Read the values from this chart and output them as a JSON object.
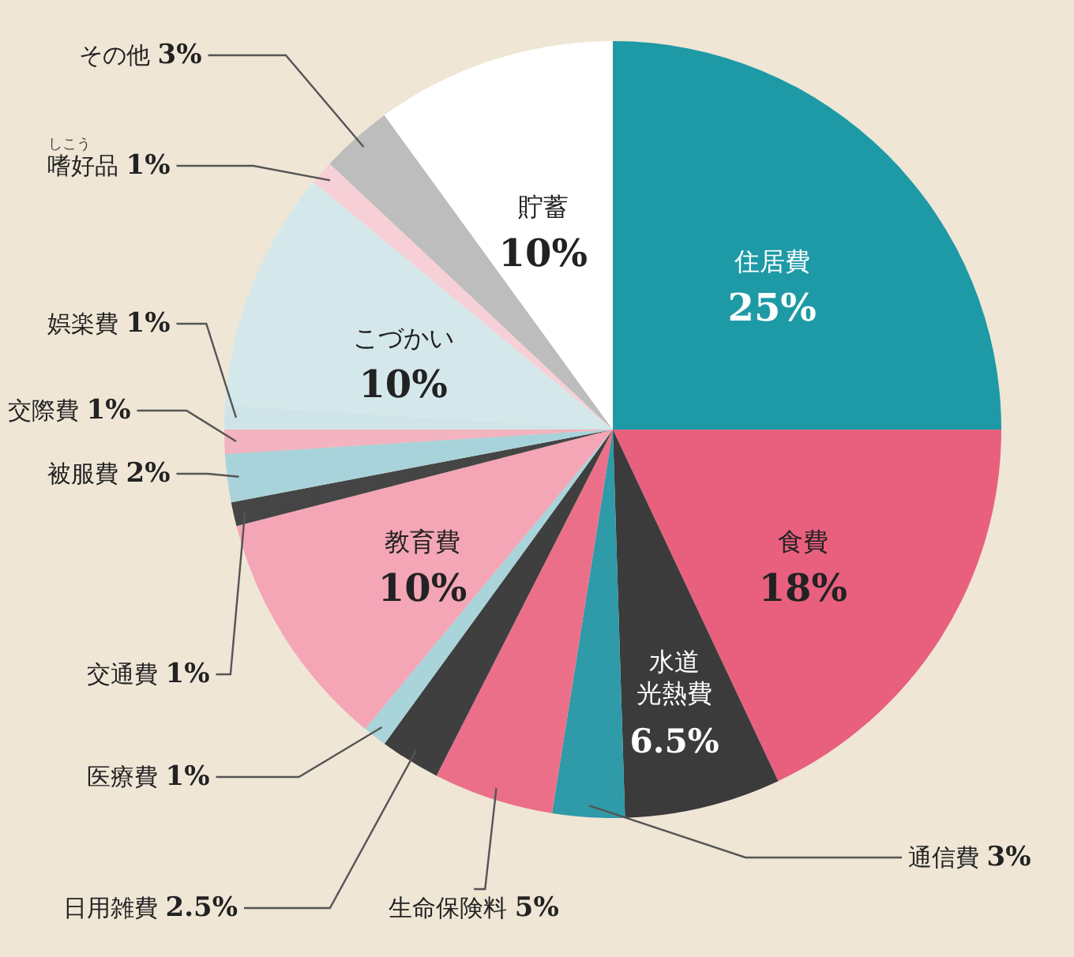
{
  "chart_data": {
    "type": "pie",
    "categories": [
      "住居費",
      "食費",
      "水道光熱費",
      "通信費",
      "生命保険料",
      "日用雑費",
      "医療費",
      "教育費",
      "交通費",
      "被服費",
      "交際費",
      "娯楽費",
      "こづかい",
      "嗜好品",
      "その他",
      "貯蓄"
    ],
    "values": [
      25,
      18,
      6.5,
      3,
      5,
      2.5,
      1,
      10,
      1,
      2,
      1,
      1,
      10,
      1,
      3,
      10
    ],
    "value_labels": [
      "25%",
      "18%",
      "6.5%",
      "3%",
      "5%",
      "2.5%",
      "1%",
      "10%",
      "1%",
      "2%",
      "1%",
      "1%",
      "10%",
      "1%",
      "3%",
      "10%"
    ],
    "colors": [
      "#1d9aa6",
      "#e8607e",
      "#3b3b3b",
      "#2f9aa8",
      "#ec6f8a",
      "#3f3f3f",
      "#a8d4da",
      "#f4a6b6",
      "#454545",
      "#a9d3da",
      "#f3b3c0",
      "#cfe4e8",
      "#d4e8ec",
      "#f6d0d6",
      "#bdbdbd",
      "#ffffff"
    ],
    "annotations": [
      "しこう"
    ]
  }
}
